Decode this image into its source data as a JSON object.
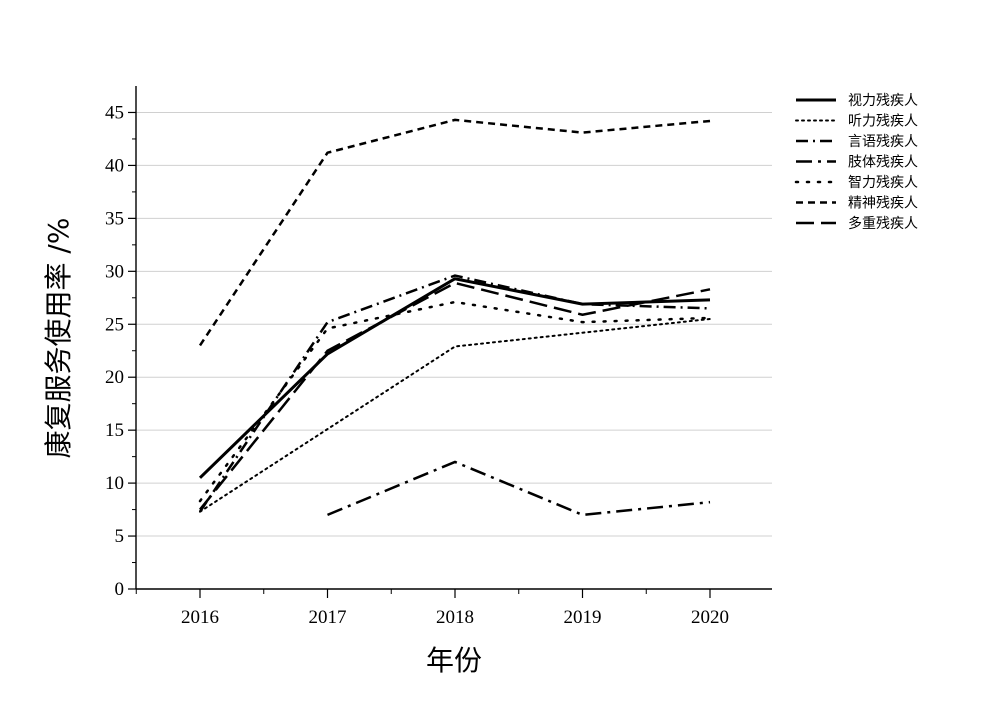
{
  "chart_data": {
    "type": "line",
    "xlabel": "年份",
    "ylabel": "康复服务使用率 /%",
    "x": [
      2016,
      2017,
      2018,
      2019,
      2020
    ],
    "x_ticks": [
      "2016",
      "2017",
      "2018",
      "2019",
      "2020"
    ],
    "ylim": [
      0,
      45
    ],
    "y_ticks": [
      "0",
      "5",
      "10",
      "15",
      "20",
      "25",
      "30",
      "35",
      "40",
      "45"
    ],
    "grid": "horizontal",
    "legend": "right",
    "series": [
      {
        "name": "视力残疾人",
        "values": [
          10.5,
          22.2,
          29.3,
          26.9,
          27.3
        ],
        "dash": "solid",
        "width": 3
      },
      {
        "name": "听力残疾人",
        "values": [
          7.3,
          15.1,
          22.9,
          24.2,
          25.5
        ],
        "dash": "dotted",
        "width": 2
      },
      {
        "name": "言语残疾人",
        "values": [
          7.3,
          25.2,
          29.6,
          26.9,
          26.5
        ],
        "dash": "dashdot",
        "width": 2.5
      },
      {
        "name": "肢体残疾人",
        "values": [
          null,
          7.0,
          12.0,
          7.0,
          8.2
        ],
        "dash": "longdashdot",
        "width": 2.5
      },
      {
        "name": "智力残疾人",
        "values": [
          8.3,
          24.6,
          27.1,
          25.2,
          25.6
        ],
        "dash": "sparsedot",
        "width": 2.5
      },
      {
        "name": "精神残疾人",
        "values": [
          23.0,
          41.2,
          44.3,
          43.1,
          44.2
        ],
        "dash": "dashed",
        "width": 2.5
      },
      {
        "name": "多重残疾人",
        "values": [
          7.5,
          22.5,
          28.9,
          25.9,
          28.3
        ],
        "dash": "longdash",
        "width": 2.5
      }
    ]
  }
}
